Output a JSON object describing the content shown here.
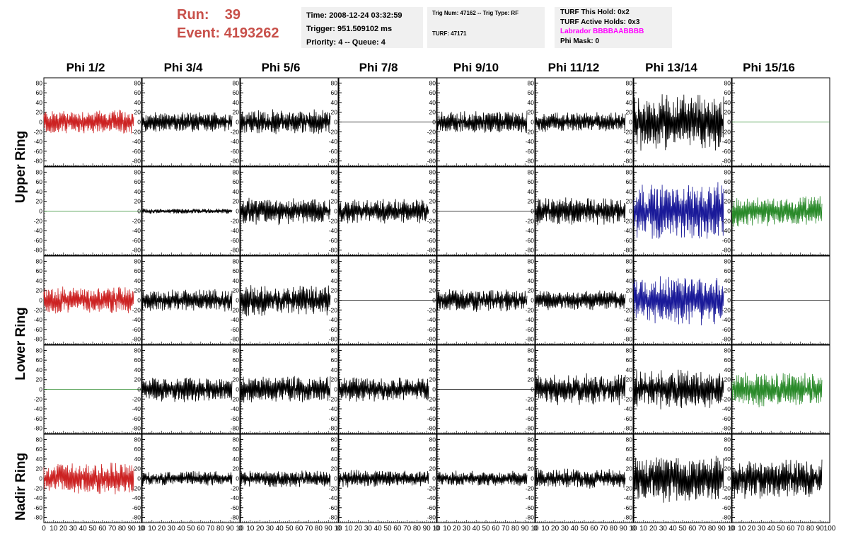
{
  "header": {
    "run_label": "Run:",
    "run_value": "39",
    "event_label": "Event:",
    "event_value": "4193262",
    "time": "Time: 2008-12-24 03:32:59",
    "trigger": "Trigger: 951.509102 ms",
    "priority": "Priority: 4 -- Queue: 4",
    "trig_num": "Trig Num: 47162 -- Trig Type: RF",
    "turf": "TURF: 47171",
    "turf_this_hold": "TURF This Hold: 0x2",
    "turf_active_holds": "TURF Active Holds: 0x3",
    "labrador": "Labrador BBBBAABBBB",
    "phi_mask": "Phi Mask: 0"
  },
  "columns": [
    "Phi 1/2",
    "Phi 3/4",
    "Phi 5/6",
    "Phi 7/8",
    "Phi 9/10",
    "Phi 11/12",
    "Phi 13/14",
    "Phi 15/16"
  ],
  "ring_labels": [
    "Upper Ring",
    "Lower Ring",
    "Nadir Ring"
  ],
  "colors": {
    "red": "#cc2222",
    "black": "#000000",
    "blue": "#1a1a99",
    "green": "#2a8a2a",
    "magenta": "#ff00ff"
  },
  "chart_data": {
    "type": "line",
    "ylim": [
      -85,
      85
    ],
    "xlim": [
      0,
      100
    ],
    "yticks": [
      -80,
      -60,
      -40,
      -20,
      0,
      20,
      40,
      60,
      80
    ],
    "xticks": [
      0,
      10,
      20,
      30,
      40,
      50,
      60,
      70,
      80,
      90,
      100
    ],
    "x_tick_labels_last_panel": [
      "0",
      "10",
      "20",
      "30",
      "40",
      "50",
      "60",
      "70",
      "80",
      "90",
      "100"
    ],
    "x_tick_labels_other_panels": [
      "0",
      "10",
      "20",
      "30",
      "40",
      "50",
      "60",
      "70",
      "80",
      "90",
      "10"
    ],
    "panels": [
      [
        {
          "amplitude": 20,
          "color": "red"
        },
        {
          "amplitude": 16,
          "color": "black"
        },
        {
          "amplitude": 20,
          "color": "black"
        },
        {
          "amplitude": 0,
          "color": "black"
        },
        {
          "amplitude": 18,
          "color": "black"
        },
        {
          "amplitude": 16,
          "color": "black"
        },
        {
          "amplitude": 45,
          "color": "black"
        },
        {
          "amplitude": 0,
          "color": "green"
        }
      ],
      [
        {
          "amplitude": 0,
          "color": "green"
        },
        {
          "amplitude": 4,
          "color": "black"
        },
        {
          "amplitude": 22,
          "color": "black"
        },
        {
          "amplitude": 20,
          "color": "black"
        },
        {
          "amplitude": 0,
          "color": "black"
        },
        {
          "amplitude": 22,
          "color": "black"
        },
        {
          "amplitude": 45,
          "color": "blue"
        },
        {
          "amplitude": 25,
          "color": "green"
        }
      ],
      [
        {
          "amplitude": 22,
          "color": "red"
        },
        {
          "amplitude": 18,
          "color": "black"
        },
        {
          "amplitude": 25,
          "color": "black"
        },
        {
          "amplitude": 0,
          "color": "black"
        },
        {
          "amplitude": 18,
          "color": "black"
        },
        {
          "amplitude": 16,
          "color": "black"
        },
        {
          "amplitude": 40,
          "color": "blue"
        },
        {
          "amplitude": 0,
          "color": "black"
        }
      ],
      [
        {
          "amplitude": 0,
          "color": "green"
        },
        {
          "amplitude": 20,
          "color": "black"
        },
        {
          "amplitude": 22,
          "color": "black"
        },
        {
          "amplitude": 20,
          "color": "black"
        },
        {
          "amplitude": 0,
          "color": "black"
        },
        {
          "amplitude": 25,
          "color": "black"
        },
        {
          "amplitude": 32,
          "color": "black"
        },
        {
          "amplitude": 28,
          "color": "green"
        }
      ],
      [
        {
          "amplitude": 25,
          "color": "red"
        },
        {
          "amplitude": 12,
          "color": "black"
        },
        {
          "amplitude": 14,
          "color": "black"
        },
        {
          "amplitude": 14,
          "color": "black"
        },
        {
          "amplitude": 12,
          "color": "black"
        },
        {
          "amplitude": 16,
          "color": "black"
        },
        {
          "amplitude": 38,
          "color": "black"
        },
        {
          "amplitude": 32,
          "color": "black"
        }
      ]
    ]
  }
}
